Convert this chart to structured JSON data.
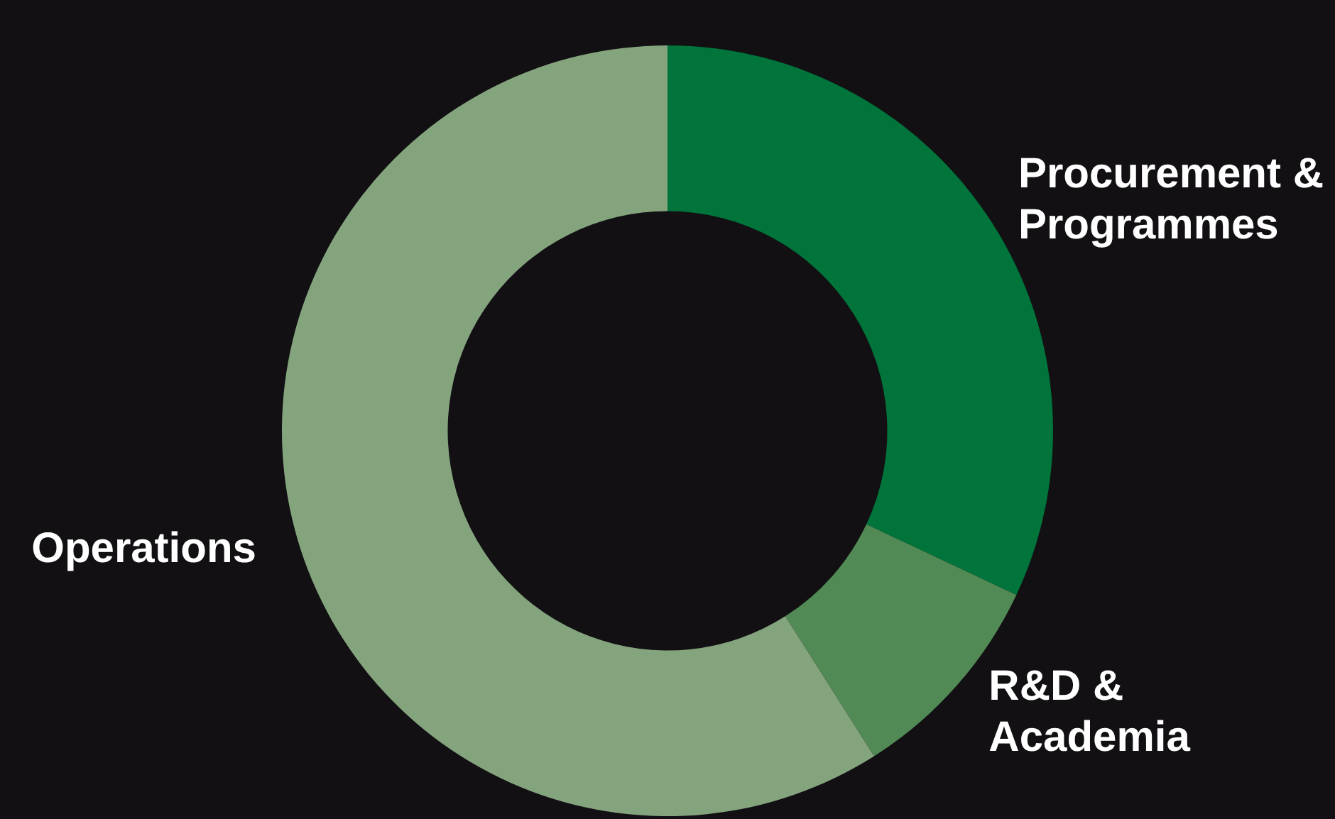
{
  "chart_data": {
    "type": "donut",
    "categories": [
      "Procurement & Programmes",
      "R&D & Academia",
      "Operations"
    ],
    "values": [
      32,
      9,
      59
    ],
    "colors": [
      "#00743a",
      "#528a56",
      "#84a47e"
    ],
    "legend": false
  }
}
